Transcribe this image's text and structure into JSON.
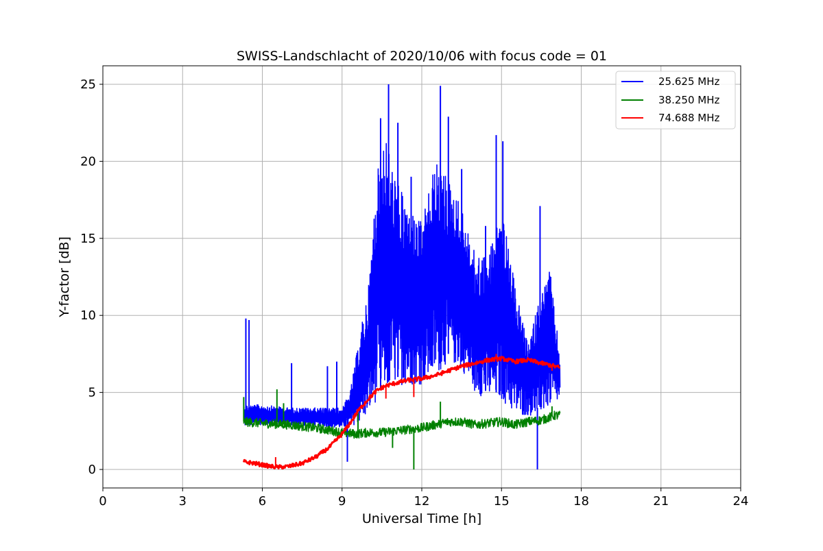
{
  "chart_data": {
    "type": "line",
    "title": "SWISS-Landschlacht of 2020/10/06 with focus code = 01",
    "xlabel": "Universal Time [h]",
    "ylabel": "Y-factor [dB]",
    "xlim": [
      0,
      24
    ],
    "ylim": [
      -1.2,
      26.2
    ],
    "xticks": [
      0,
      3,
      6,
      9,
      12,
      15,
      18,
      21,
      24
    ],
    "yticks": [
      0,
      5,
      10,
      15,
      20,
      25
    ],
    "grid": true,
    "legend_position": "top-right",
    "series": [
      {
        "name": "25.625 MHz",
        "color": "#0000ff",
        "kind": "noisy-envelope",
        "x": [
          5.3,
          6,
          7,
          8,
          9,
          9.3,
          9.6,
          10,
          10.3,
          10.6,
          11,
          11.5,
          12,
          12.5,
          13,
          13.5,
          14,
          14.5,
          15,
          15.5,
          16,
          16.4,
          16.8,
          17.2
        ],
        "lower": [
          2.8,
          2.9,
          2.9,
          2.8,
          2.7,
          2.8,
          3.0,
          3.5,
          4.5,
          5.0,
          5.5,
          5.5,
          5.5,
          6.0,
          7.0,
          6.5,
          5.0,
          4.5,
          4.5,
          3.5,
          3.5,
          3.5,
          4.0,
          4.5
        ],
        "upper": [
          4.2,
          4.2,
          4.0,
          4.0,
          4.0,
          5.0,
          8.0,
          12.0,
          19.0,
          22.0,
          19.0,
          17.0,
          16.0,
          20.0,
          19.0,
          17.0,
          14.0,
          14.0,
          17.0,
          12.0,
          8.0,
          11.0,
          13.0,
          7.5
        ],
        "spikes": [
          [
            5.38,
            9.8
          ],
          [
            5.5,
            9.7
          ],
          [
            7.1,
            6.9
          ],
          [
            8.45,
            6.7
          ],
          [
            8.8,
            7.0
          ],
          [
            10.45,
            22.8
          ],
          [
            10.75,
            25.0
          ],
          [
            11.1,
            22.5
          ],
          [
            11.6,
            19.0
          ],
          [
            12.7,
            24.9
          ],
          [
            13.0,
            22.9
          ],
          [
            13.5,
            19.5
          ],
          [
            14.4,
            15.8
          ],
          [
            14.8,
            21.7
          ],
          [
            15.05,
            21.3
          ],
          [
            16.45,
            17.1
          ],
          [
            16.85,
            12.5
          ],
          [
            16.35,
            0.0
          ],
          [
            9.2,
            0.5
          ]
        ]
      },
      {
        "name": "38.250 MHz",
        "color": "#008000",
        "kind": "noisy-line",
        "x": [
          5.3,
          6,
          7,
          8,
          9,
          9.5,
          10,
          10.5,
          11,
          11.5,
          12,
          12.5,
          13,
          13.5,
          14,
          14.5,
          15,
          15.5,
          16,
          16.5,
          17,
          17.2
        ],
        "y": [
          3.1,
          3.0,
          2.9,
          2.7,
          2.4,
          2.3,
          2.4,
          2.4,
          2.5,
          2.6,
          2.7,
          2.9,
          3.1,
          3.1,
          2.9,
          3.0,
          3.1,
          2.9,
          3.1,
          3.2,
          3.5,
          3.5
        ],
        "spikes": [
          [
            5.3,
            4.7
          ],
          [
            6.55,
            5.2
          ],
          [
            6.8,
            4.3
          ],
          [
            9.6,
            3.7
          ],
          [
            11.7,
            0.0
          ],
          [
            12.7,
            4.4
          ],
          [
            16.9,
            4.1
          ],
          [
            10.9,
            1.4
          ]
        ]
      },
      {
        "name": "74.688 MHz",
        "color": "#ff0000",
        "kind": "smooth-line",
        "x": [
          5.3,
          5.7,
          6,
          6.3,
          6.6,
          7,
          7.5,
          8,
          8.5,
          9,
          9.3,
          9.6,
          10,
          10.3,
          10.6,
          11,
          11.5,
          12,
          12.5,
          13,
          13.5,
          14,
          14.5,
          15,
          15.5,
          16,
          16.5,
          17,
          17.2
        ],
        "y": [
          0.5,
          0.4,
          0.3,
          0.2,
          0.15,
          0.2,
          0.4,
          0.8,
          1.4,
          2.3,
          3.0,
          3.8,
          4.6,
          5.1,
          5.4,
          5.6,
          5.8,
          5.9,
          6.1,
          6.4,
          6.7,
          6.9,
          7.1,
          7.2,
          7.0,
          7.1,
          6.9,
          6.7,
          6.6
        ],
        "spikes": [
          [
            6.5,
            0.8
          ],
          [
            10.65,
            4.6
          ],
          [
            11.7,
            4.7
          ],
          [
            14.8,
            7.5
          ],
          [
            16.9,
            6.4
          ]
        ]
      }
    ]
  }
}
